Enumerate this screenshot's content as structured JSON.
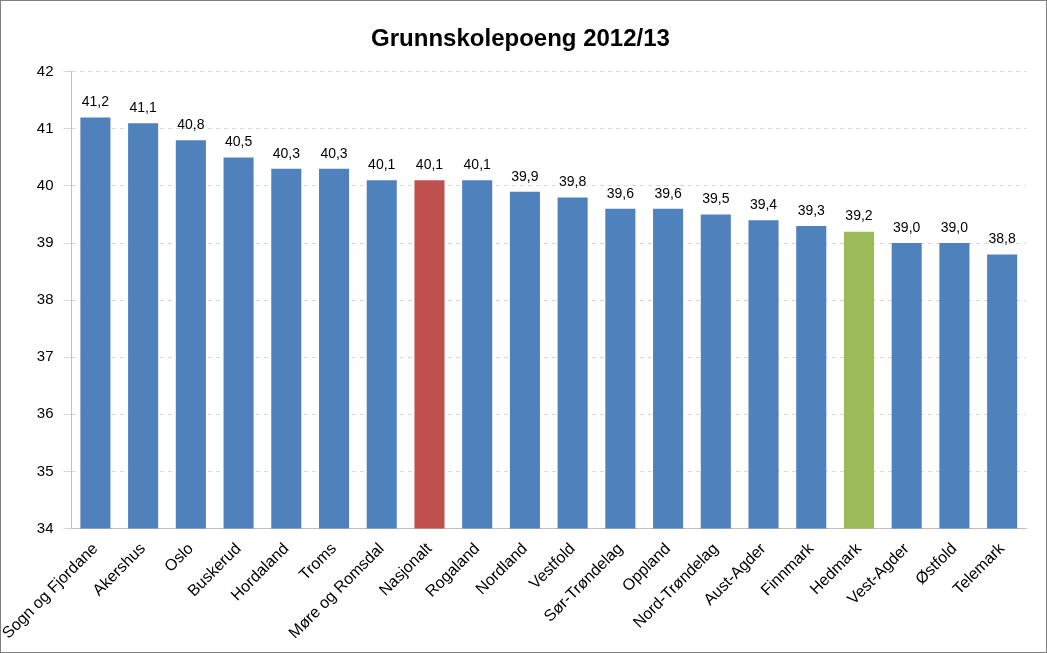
{
  "chart_data": {
    "type": "bar",
    "title": "Grunnskolepoeng 2012/13",
    "categories": [
      "Sogn og Fjordane",
      "Akershus",
      "Oslo",
      "Buskerud",
      "Hordaland",
      "Troms",
      "Møre og Romsdal",
      "Nasjonalt",
      "Rogaland",
      "Nordland",
      "Vestfold",
      "Sør-Trøndelag",
      "Oppland",
      "Nord-Trøndelag",
      "Aust-Agder",
      "Finnmark",
      "Hedmark",
      "Vest-Agder",
      "Østfold",
      "Telemark"
    ],
    "values": [
      41.2,
      41.1,
      40.8,
      40.5,
      40.3,
      40.3,
      40.1,
      40.1,
      40.1,
      39.9,
      39.8,
      39.6,
      39.6,
      39.5,
      39.4,
      39.3,
      39.2,
      39.0,
      39.0,
      38.8
    ],
    "value_labels": [
      "41,2",
      "41,1",
      "40,8",
      "40,5",
      "40,3",
      "40,3",
      "40,1",
      "40,1",
      "40,1",
      "39,9",
      "39,8",
      "39,6",
      "39,6",
      "39,5",
      "39,4",
      "39,3",
      "39,2",
      "39,0",
      "39,0",
      "38,8"
    ],
    "colors": [
      "#4f81bd",
      "#4f81bd",
      "#4f81bd",
      "#4f81bd",
      "#4f81bd",
      "#4f81bd",
      "#4f81bd",
      "#c0504d",
      "#4f81bd",
      "#4f81bd",
      "#4f81bd",
      "#4f81bd",
      "#4f81bd",
      "#4f81bd",
      "#4f81bd",
      "#4f81bd",
      "#9bbb59",
      "#4f81bd",
      "#4f81bd",
      "#4f81bd"
    ],
    "ylim": [
      34,
      42
    ],
    "yticks": [
      34,
      35,
      36,
      37,
      38,
      39,
      40,
      41,
      42
    ],
    "grid": true,
    "data_labels": true
  }
}
